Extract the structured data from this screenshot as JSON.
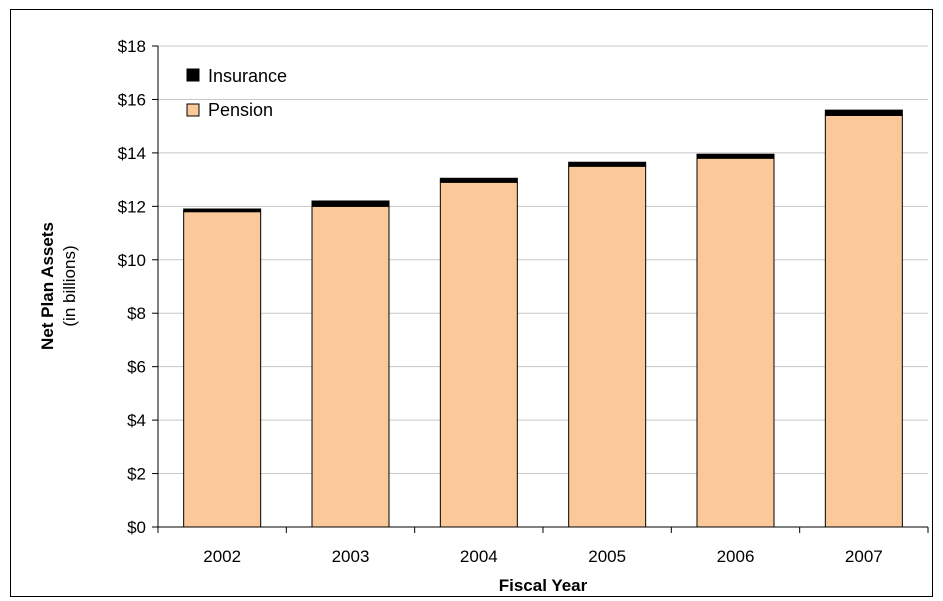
{
  "chart_data": {
    "type": "bar",
    "stacked": true,
    "categories": [
      "2002",
      "2003",
      "2004",
      "2005",
      "2006",
      "2007"
    ],
    "series": [
      {
        "name": "Pension",
        "values": [
          11.8,
          12.0,
          12.9,
          13.5,
          13.8,
          15.4
        ],
        "color": "#FBC999"
      },
      {
        "name": "Insurance",
        "values": [
          0.1,
          0.2,
          0.15,
          0.15,
          0.15,
          0.2
        ],
        "color": "#000000"
      }
    ],
    "xlabel": "Fiscal Year",
    "ylabel": "Net Plan Assets",
    "ylabel_sub": "(in billions)",
    "ylim": [
      0,
      18
    ],
    "yticks": [
      "$0",
      "$2",
      "$4",
      "$6",
      "$8",
      "$10",
      "$12",
      "$14",
      "$16",
      "$18"
    ],
    "grid": true,
    "legend_position": "top-left",
    "legend_order": [
      "Insurance",
      "Pension"
    ]
  }
}
